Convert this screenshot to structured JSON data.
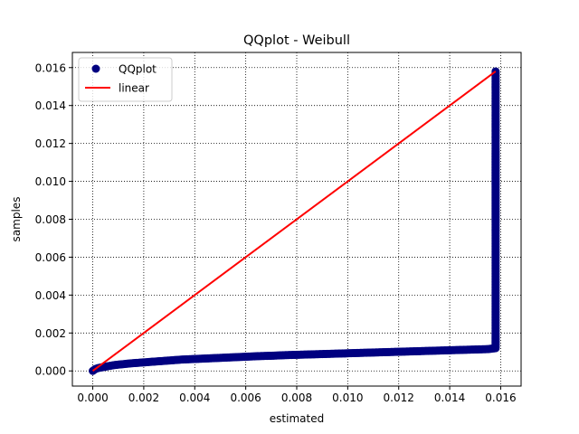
{
  "chart_data": {
    "type": "scatter",
    "title": "QQplot - Weibull",
    "xlabel": "estimated",
    "ylabel": "samples",
    "xlim": [
      -0.0008,
      0.0168
    ],
    "ylim": [
      -0.0008,
      0.0168
    ],
    "x_ticks": [
      0.0,
      0.002,
      0.004,
      0.006,
      0.008,
      0.01,
      0.012,
      0.014,
      0.016
    ],
    "y_ticks": [
      0.0,
      0.002,
      0.004,
      0.006,
      0.008,
      0.01,
      0.012,
      0.014,
      0.016
    ],
    "x_tick_labels": [
      "0.000",
      "0.002",
      "0.004",
      "0.006",
      "0.008",
      "0.010",
      "0.012",
      "0.014",
      "0.016"
    ],
    "y_tick_labels": [
      "0.000",
      "0.002",
      "0.004",
      "0.006",
      "0.008",
      "0.010",
      "0.012",
      "0.014",
      "0.016"
    ],
    "grid": true,
    "legend_position": "top-left",
    "series": [
      {
        "name": "QQplot",
        "kind": "scatter",
        "color": "#000080",
        "x": [
          0.0,
          5e-05,
          0.0001,
          0.0002,
          0.0004,
          0.0006,
          0.0008,
          0.001,
          0.0015,
          0.002,
          0.0025,
          0.003,
          0.0035,
          0.004,
          0.0045,
          0.005,
          0.0055,
          0.006,
          0.0065,
          0.007,
          0.0075,
          0.008,
          0.0085,
          0.009,
          0.0095,
          0.01,
          0.0105,
          0.011,
          0.0115,
          0.012,
          0.0125,
          0.013,
          0.0135,
          0.014,
          0.0145,
          0.015,
          0.0155,
          0.0158,
          0.0158,
          0.0158,
          0.0158,
          0.0158,
          0.0158,
          0.0158,
          0.0158,
          0.0158,
          0.0158,
          0.0158,
          0.0158,
          0.0158,
          0.0158,
          0.0158,
          0.0158,
          0.0158,
          0.0158,
          0.0158
        ],
        "y": [
          0.0,
          5e-05,
          0.0001,
          0.00015,
          0.0002,
          0.00025,
          0.0003,
          0.00033,
          0.0004,
          0.00045,
          0.0005,
          0.00055,
          0.0006,
          0.00063,
          0.00066,
          0.00069,
          0.00072,
          0.00075,
          0.00078,
          0.0008,
          0.00083,
          0.00085,
          0.00087,
          0.00089,
          0.00091,
          0.00093,
          0.00095,
          0.00097,
          0.00099,
          0.00101,
          0.00103,
          0.00105,
          0.00107,
          0.00109,
          0.00111,
          0.00113,
          0.00115,
          0.0012,
          0.0014,
          0.0017,
          0.002,
          0.0025,
          0.003,
          0.004,
          0.005,
          0.006,
          0.007,
          0.008,
          0.009,
          0.01,
          0.011,
          0.0115,
          0.0122,
          0.0128,
          0.013,
          0.0158
        ]
      },
      {
        "name": "linear",
        "kind": "line",
        "color": "#ff0000",
        "x": [
          0.0,
          0.0158
        ],
        "y": [
          0.0,
          0.0158
        ]
      }
    ]
  }
}
